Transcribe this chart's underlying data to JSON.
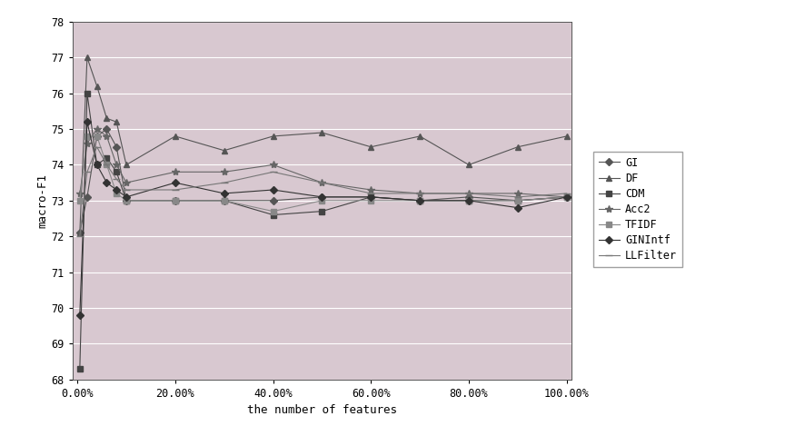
{
  "x_values": [
    0.5,
    2,
    4,
    6,
    8,
    10,
    20,
    30,
    40,
    50,
    60,
    70,
    80,
    90,
    100
  ],
  "series": {
    "GI": {
      "marker": "D",
      "marker_size": 4,
      "color": "#555555",
      "values": [
        72.1,
        73.1,
        74.8,
        75.0,
        74.5,
        73.0,
        73.0,
        73.0,
        73.0,
        73.1,
        73.1,
        73.0,
        73.1,
        73.0,
        73.1
      ]
    },
    "DF": {
      "marker": "^",
      "marker_size": 5,
      "color": "#555555",
      "values": [
        72.1,
        77.0,
        76.2,
        75.3,
        75.2,
        74.0,
        74.8,
        74.4,
        74.8,
        74.9,
        74.5,
        74.8,
        74.0,
        74.5,
        74.8
      ]
    },
    "CDM": {
      "marker": "s",
      "marker_size": 5,
      "color": "#444444",
      "values": [
        68.3,
        76.0,
        74.0,
        74.2,
        73.8,
        73.0,
        73.0,
        73.0,
        72.6,
        72.7,
        73.1,
        73.0,
        73.0,
        73.0,
        73.1
      ]
    },
    "Acc2": {
      "marker": "*",
      "marker_size": 6,
      "color": "#666666",
      "values": [
        73.2,
        74.6,
        75.0,
        74.8,
        74.0,
        73.5,
        73.8,
        73.8,
        74.0,
        73.5,
        73.3,
        73.2,
        73.2,
        73.2,
        73.1
      ]
    },
    "TFIDF": {
      "marker": "s",
      "marker_size": 4,
      "color": "#888888",
      "values": [
        73.0,
        74.8,
        74.8,
        74.0,
        73.2,
        73.0,
        73.0,
        73.0,
        72.7,
        73.0,
        73.0,
        73.0,
        73.0,
        73.0,
        73.1
      ]
    },
    "GINIntf": {
      "marker": "D",
      "marker_size": 4,
      "color": "#333333",
      "values": [
        69.8,
        75.2,
        74.0,
        73.5,
        73.3,
        73.1,
        73.5,
        73.2,
        73.3,
        73.1,
        73.1,
        73.0,
        73.0,
        72.8,
        73.1
      ]
    },
    "LLFilter": {
      "marker": "_",
      "marker_size": 6,
      "color": "#777777",
      "values": [
        72.0,
        73.8,
        74.5,
        74.0,
        73.6,
        73.3,
        73.3,
        73.5,
        73.8,
        73.5,
        73.2,
        73.2,
        73.2,
        73.1,
        73.2
      ]
    }
  },
  "xlabel": "the number of features",
  "ylabel": "macro-F1",
  "ylim": [
    68,
    78
  ],
  "yticks": [
    68,
    69,
    70,
    71,
    72,
    73,
    74,
    75,
    76,
    77,
    78
  ],
  "xticks": [
    0,
    20,
    40,
    60,
    80,
    100
  ],
  "xlim": [
    0,
    100
  ],
  "plot_area_color": "#d8c8d0",
  "outer_bg": "#ffffff",
  "legend_fontsize": 8.5,
  "axis_fontsize": 9,
  "tick_fontsize": 8.5,
  "series_order": [
    "GI",
    "DF",
    "CDM",
    "Acc2",
    "TFIDF",
    "GINIntf",
    "LLFilter"
  ]
}
